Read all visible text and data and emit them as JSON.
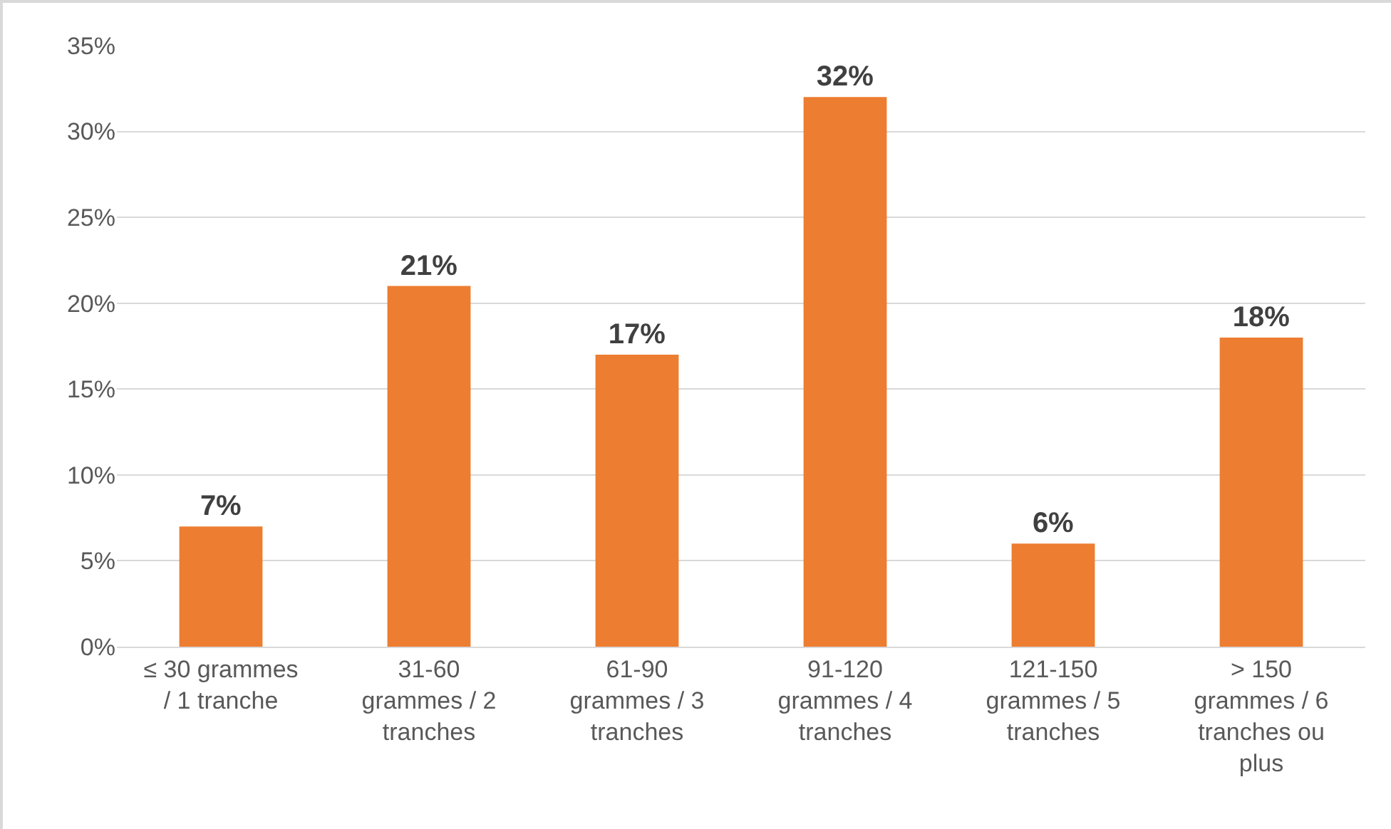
{
  "chart_data": {
    "type": "bar",
    "categories": [
      "≤ 30 grammes / 1 tranche",
      "31-60 grammes / 2 tranches",
      "61-90 grammes / 3 tranches",
      "91-120 grammes / 4 tranches",
      "121-150 grammes / 5 tranches",
      "> 150 grammes / 6 tranches ou plus"
    ],
    "values": [
      7,
      21,
      17,
      32,
      6,
      18
    ],
    "color": "#ed7d31",
    "value_labels": [
      "7%",
      "21%",
      "17%",
      "32%",
      "6%",
      "18%"
    ],
    "ylim": [
      0,
      35
    ],
    "yticks": [
      {
        "value": 0,
        "label": "0%"
      },
      {
        "value": 5,
        "label": "5%"
      },
      {
        "value": 10,
        "label": "10%"
      },
      {
        "value": 15,
        "label": "15%"
      },
      {
        "value": 20,
        "label": "20%"
      },
      {
        "value": 25,
        "label": "25%"
      },
      {
        "value": 30,
        "label": "30%"
      },
      {
        "value": 35,
        "label": "35%"
      }
    ],
    "grid": "y",
    "legend": false
  }
}
